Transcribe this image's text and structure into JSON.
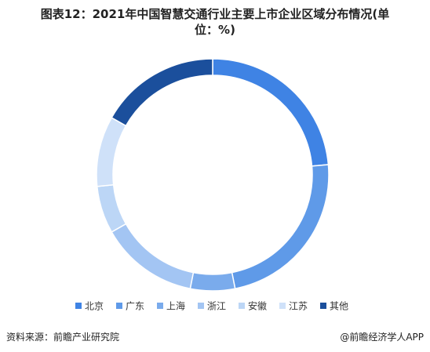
{
  "chart_data": {
    "type": "pie",
    "title": "图表12：2021年中国智慧交通行业主要上市企业区域分布情况(单位：%)",
    "categories": [
      "北京",
      "广东",
      "上海",
      "浙江",
      "安徽",
      "江苏",
      "其他"
    ],
    "values": [
      23.6,
      23.3,
      6.2,
      13.7,
      6.6,
      9.8,
      16.8
    ],
    "colors": [
      "#3f83e4",
      "#5f9ae8",
      "#7aabec",
      "#a3c5f3",
      "#bcd6f6",
      "#cfe1f9",
      "#1b4f9c"
    ],
    "source": "资料来源：前瞻产业研究院",
    "credit": "@前瞻经济学人APP"
  }
}
